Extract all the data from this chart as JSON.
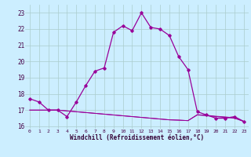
{
  "x": [
    0,
    1,
    2,
    3,
    4,
    5,
    6,
    7,
    8,
    9,
    10,
    11,
    12,
    13,
    14,
    15,
    16,
    17,
    18,
    19,
    20,
    21,
    22,
    23
  ],
  "y_main": [
    17.7,
    17.5,
    17.0,
    17.0,
    16.6,
    17.5,
    18.5,
    19.4,
    19.6,
    21.8,
    22.2,
    21.9,
    23.0,
    22.1,
    22.0,
    21.6,
    20.3,
    19.5,
    16.9,
    16.7,
    16.5,
    16.5,
    16.6,
    16.3
  ],
  "y_flat1": [
    17.0,
    17.0,
    17.0,
    17.0,
    16.95,
    16.9,
    16.85,
    16.8,
    16.75,
    16.7,
    16.65,
    16.6,
    16.55,
    16.5,
    16.45,
    16.4,
    16.38,
    16.35,
    16.7,
    16.65,
    16.6,
    16.55,
    16.5,
    16.3
  ],
  "y_flat2": [
    17.0,
    17.0,
    17.0,
    17.0,
    16.95,
    16.9,
    16.85,
    16.8,
    16.75,
    16.7,
    16.65,
    16.6,
    16.55,
    16.5,
    16.45,
    16.4,
    16.38,
    16.35,
    16.72,
    16.68,
    16.62,
    16.58,
    16.52,
    16.3
  ],
  "line_color": "#990099",
  "bg_color": "#cceeff",
  "grid_color": "#aacccc",
  "xlabel": "Windchill (Refroidissement éolien,°C)",
  "ylim": [
    15.85,
    23.5
  ],
  "xlim": [
    -0.5,
    23.5
  ],
  "yticks": [
    16,
    17,
    18,
    19,
    20,
    21,
    22,
    23
  ],
  "xticks": [
    0,
    1,
    2,
    3,
    4,
    5,
    6,
    7,
    8,
    9,
    10,
    11,
    12,
    13,
    14,
    15,
    16,
    17,
    18,
    19,
    20,
    21,
    22,
    23
  ]
}
